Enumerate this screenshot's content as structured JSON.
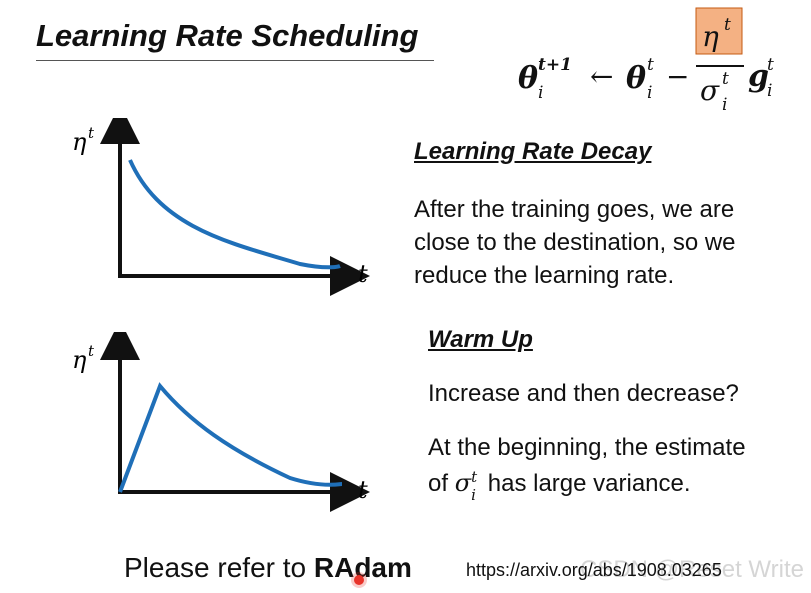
{
  "slide": {
    "title": "Learning Rate Scheduling",
    "formula": {
      "theta": "θ",
      "sub_i": "i",
      "sup_t1": "t+1",
      "sup_t": "t",
      "arrow": "←",
      "minus": "−",
      "eta": "η",
      "sigma": "σ",
      "g": "g",
      "highlight_color": "#f4b183"
    },
    "decay": {
      "heading": "Learning Rate Decay",
      "line1": "After the training goes, we are",
      "line2": "close to the destination, so we",
      "line3": "reduce the learning rate.",
      "y_label": "η",
      "y_sup": "t",
      "x_label": "t"
    },
    "warmup": {
      "heading": "Warm Up",
      "line1": "Increase and then decrease?",
      "line2": "At the beginning, the estimate",
      "line3_pre": "of ",
      "line3_sigma": "σ",
      "line3_sub": "i",
      "line3_sup": "t",
      "line3_post": " has large variance.",
      "y_label": "η",
      "y_sup": "t",
      "x_label": "t"
    },
    "footer": {
      "prefix": "Please refer to ",
      "bold": "RAdam",
      "url": "https://arxiv.org/abs/1908.03265",
      "watermark": "CSDN @Reset Write"
    },
    "curve_color": "#1f6fb8"
  }
}
